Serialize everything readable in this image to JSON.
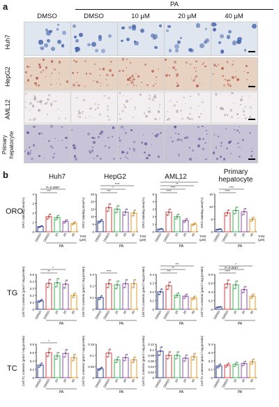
{
  "panel_a": {
    "letter": "a",
    "pa_label": "PA",
    "column_headers": [
      "DMSO",
      "DMSO",
      "10 μM",
      "20 μM",
      "40 μM"
    ],
    "row_labels": [
      "Huh7",
      "HepG2",
      "AML12",
      "Primary hepatocyte"
    ],
    "row_colors": [
      "#dfe6f0",
      "#e7d2c2",
      "#f3eff0",
      "#c9c3d8"
    ],
    "row_stain_colors": [
      "#3f5fa8",
      "#b45a4a",
      "#b8a9b5",
      "#6a5a9a"
    ]
  },
  "panel_b": {
    "letter": "b",
    "column_titles": [
      "Huh7",
      "HepG2",
      "AML12",
      "Primary hepatocyte"
    ],
    "row_titles": [
      "ORO",
      "TG",
      "TC"
    ],
    "x_ticks": [
      "DMSO",
      "DMSO",
      "10",
      "20",
      "40"
    ],
    "x_group_label": "PA",
    "x_tam_label": "TAM",
    "x_unit_label": "(μM)",
    "y_labels": [
      "ORO staining area(%)",
      "Cell TG contents (μmol / mg protein)",
      "Cell TC contents (μmol / mg protein)"
    ],
    "bar_colors": [
      "#3a4fa8",
      "#e84a4a",
      "#3fbf5a",
      "#9b59b6",
      "#f0a030"
    ],
    "annotations": {
      "oro_huh7": [
        "***",
        "P=0.0987"
      ],
      "oro_hepg2": [
        "***",
        "*",
        "****"
      ],
      "oro_aml12": [
        "****",
        "****",
        "**",
        "*"
      ],
      "oro_primary": [
        "****",
        "****"
      ],
      "tg_huh7": [
        "**",
        "*"
      ],
      "tg_hepg2": [
        "****"
      ],
      "tg_aml12": [
        "***",
        "**",
        "***"
      ],
      "tg_primary": [
        "****",
        "P=0.0657",
        "*"
      ],
      "tc_huh7": [
        "*"
      ]
    }
  },
  "chart_data": [
    {
      "type": "bar",
      "row": "ORO",
      "cell": "Huh7",
      "categories": [
        "DMSO",
        "PA DMSO",
        "PA 10",
        "PA 20",
        "PA 40"
      ],
      "values": [
        0.55,
        1.6,
        1.5,
        1.1,
        0.9
      ],
      "ylim": [
        0,
        4
      ],
      "yticks": [
        0,
        1,
        2,
        3,
        4
      ],
      "ylabel": "ORO staining area(%)"
    },
    {
      "type": "bar",
      "row": "ORO",
      "cell": "HepG2",
      "categories": [
        "DMSO",
        "PA DMSO",
        "PA 10",
        "PA 20",
        "PA 40"
      ],
      "values": [
        7,
        16,
        15,
        13,
        12.5
      ],
      "ylim": [
        0,
        25
      ],
      "yticks": [
        0,
        5,
        10,
        15,
        20,
        25
      ],
      "ylabel": "ORO staining area(%)"
    },
    {
      "type": "bar",
      "row": "ORO",
      "cell": "AML12",
      "categories": [
        "DMSO",
        "PA DMSO",
        "PA 10",
        "PA 20",
        "PA 40"
      ],
      "values": [
        0.35,
        2.6,
        2.0,
        1.5,
        1.0
      ],
      "ylim": [
        0,
        5
      ],
      "yticks": [
        0,
        1,
        2,
        3,
        4,
        5
      ],
      "ylabel": "ORO staining area(%)"
    },
    {
      "type": "bar",
      "row": "ORO",
      "cell": "Primary hepatocyte",
      "categories": [
        "DMSO",
        "PA DMSO",
        "PA 10",
        "PA 20",
        "PA 40"
      ],
      "values": [
        1.0,
        7.5,
        8.5,
        8.0,
        5.0
      ],
      "ylim": [
        0,
        15
      ],
      "yticks": [
        0,
        5,
        10,
        15
      ],
      "ylabel": "ORO staining area(%)"
    },
    {
      "type": "bar",
      "row": "TG",
      "cell": "Huh7",
      "categories": [
        "DMSO",
        "PA DMSO",
        "PA 10",
        "PA 20",
        "PA 40"
      ],
      "values": [
        0.12,
        0.37,
        0.38,
        0.36,
        0.2
      ],
      "ylim": [
        0,
        0.5
      ],
      "yticks": [
        0,
        0.1,
        0.2,
        0.3,
        0.4,
        0.5
      ],
      "ylabel": "Cell TG contents (μmol / mg protein)"
    },
    {
      "type": "bar",
      "row": "TG",
      "cell": "HepG2",
      "categories": [
        "DMSO",
        "PA DMSO",
        "PA 10",
        "PA 20",
        "PA 40"
      ],
      "values": [
        0.1,
        0.22,
        0.21,
        0.22,
        0.22
      ],
      "ylim": [
        0,
        0.3
      ],
      "yticks": [
        0,
        0.1,
        0.2,
        0.3
      ],
      "ylabel": "Cell TG contents (μmol / mg protein)"
    },
    {
      "type": "bar",
      "row": "TG",
      "cell": "AML12",
      "categories": [
        "DMSO",
        "PA DMSO",
        "PA 10",
        "PA 20",
        "PA 40"
      ],
      "values": [
        0.2,
        0.27,
        0.16,
        0.15,
        0.13
      ],
      "ylim": [
        0,
        0.4
      ],
      "yticks": [
        0,
        0.1,
        0.2,
        0.3,
        0.4
      ],
      "ylabel": "Cell TG contents (μmol / mg protein)"
    },
    {
      "type": "bar",
      "row": "TG",
      "cell": "Primary hepatocyte",
      "categories": [
        "DMSO",
        "PA DMSO",
        "PA 10",
        "PA 20",
        "PA 40"
      ],
      "values": [
        0.05,
        0.58,
        0.56,
        0.45,
        0.3
      ],
      "ylim": [
        0,
        0.8
      ],
      "yticks": [
        0,
        0.2,
        0.4,
        0.6,
        0.8
      ],
      "ylabel": "Cell TG contents (μmol / mg protein)"
    },
    {
      "type": "bar",
      "row": "TC",
      "cell": "Huh7",
      "categories": [
        "DMSO",
        "PA DMSO",
        "PA 10",
        "PA 20",
        "PA 40"
      ],
      "values": [
        0.3,
        0.6,
        0.52,
        0.58,
        0.48
      ],
      "ylim": [
        0,
        0.8
      ],
      "yticks": [
        0,
        0.2,
        0.4,
        0.6,
        0.8
      ],
      "ylabel": "Cell TC contents (μmol / mg protein)"
    },
    {
      "type": "bar",
      "row": "TC",
      "cell": "HepG2",
      "categories": [
        "DMSO",
        "PA DMSO",
        "PA 10",
        "PA 20",
        "PA 40"
      ],
      "values": [
        0.04,
        0.11,
        0.08,
        0.09,
        0.08
      ],
      "ylim": [
        0,
        0.15
      ],
      "yticks": [
        0,
        0.05,
        0.1,
        0.15
      ],
      "ylabel": "Cell TC contents (μmol / mg protein)"
    },
    {
      "type": "bar",
      "row": "TC",
      "cell": "AML12",
      "categories": [
        "DMSO",
        "PA DMSO",
        "PA 10",
        "PA 20",
        "PA 40"
      ],
      "values": [
        0.095,
        0.08,
        0.08,
        0.07,
        0.075
      ],
      "ylim": [
        0,
        0.12
      ],
      "yticks": [
        0,
        0.02,
        0.04,
        0.06,
        0.08,
        0.1,
        0.12
      ],
      "ylabel": "Cell TC contents (μmol / mg protein)"
    },
    {
      "type": "bar",
      "row": "TC",
      "cell": "Primary hepatocyte",
      "categories": [
        "DMSO",
        "PA DMSO",
        "PA 10",
        "PA 20",
        "PA 40"
      ],
      "values": [
        0.14,
        0.15,
        0.16,
        0.17,
        0.19
      ],
      "ylim": [
        0,
        0.4
      ],
      "yticks": [
        0,
        0.1,
        0.2,
        0.3,
        0.4
      ],
      "ylabel": "Cell TC contents (μmol / mg protein)"
    }
  ]
}
